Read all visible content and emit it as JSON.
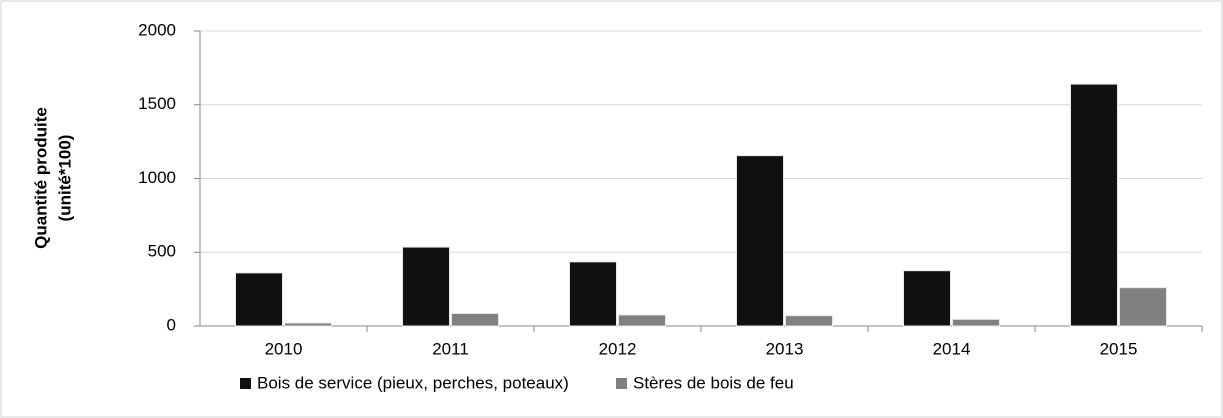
{
  "chart_data": {
    "type": "bar",
    "y_label": [
      "Quantité produite",
      "(unité*100)"
    ],
    "categories": [
      "2010",
      "2011",
      "2012",
      "2013",
      "2014",
      "2015"
    ],
    "series": [
      {
        "name": "Bois de service (pieux, perches, poteaux)",
        "color": "#111111",
        "values": [
          360,
          535,
          435,
          1155,
          375,
          1640
        ]
      },
      {
        "name": "Stères de bois de feu",
        "color": "#808080",
        "values": [
          20,
          85,
          75,
          70,
          45,
          260
        ]
      }
    ],
    "ylim": [
      0,
      2000
    ],
    "yticks": [
      0,
      500,
      1000,
      1500,
      2000
    ],
    "grid": true,
    "legend": "bottom"
  }
}
